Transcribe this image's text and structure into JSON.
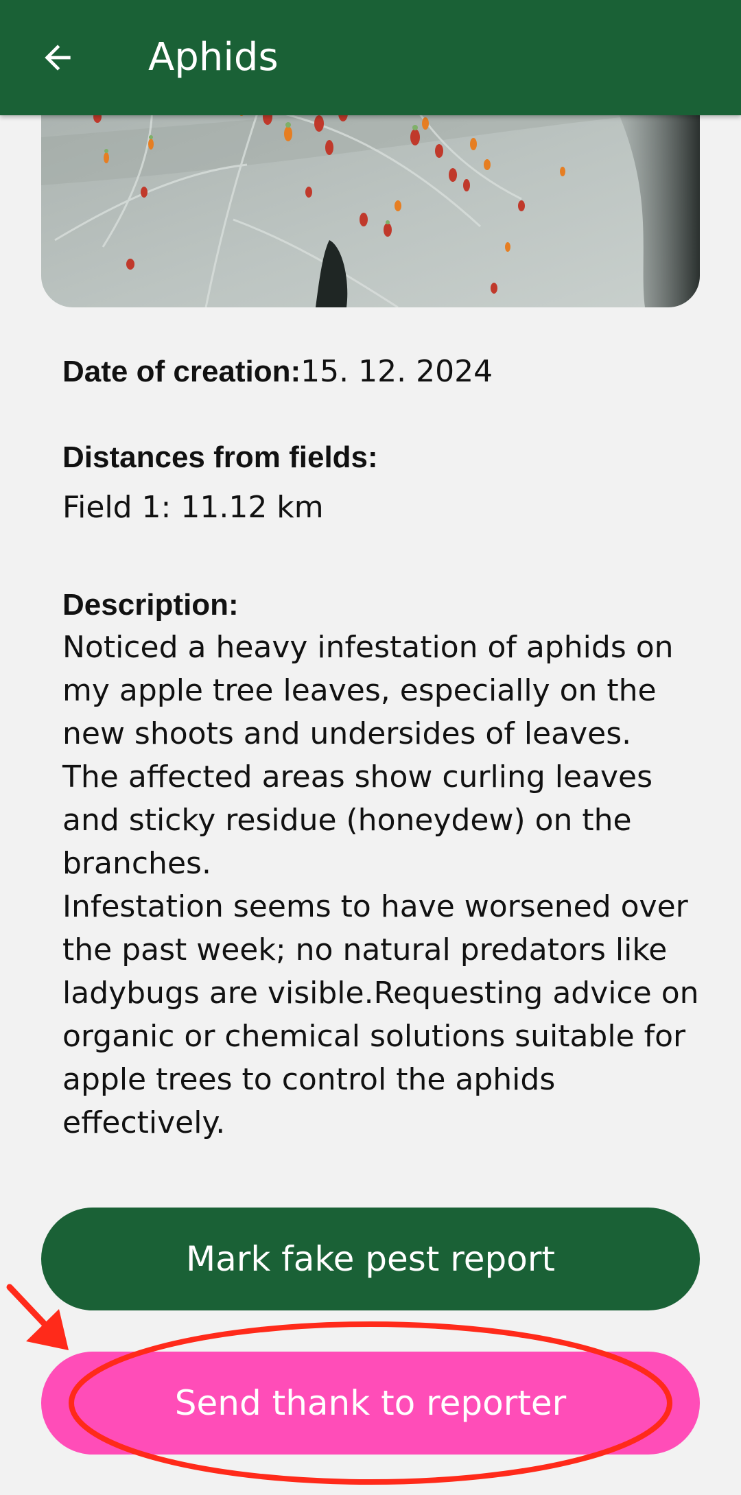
{
  "appbar": {
    "title": "Aphids",
    "back_icon": "arrow-back-icon",
    "background": "#1a6136"
  },
  "photo": {
    "subject": "aphids on leaf"
  },
  "details": {
    "date_label": "Date of creation:",
    "date_value": "15. 12. 2024",
    "distances_label": "Distances from fields:",
    "field_line": "Field 1: 11.12 km",
    "description_label": "Description:",
    "description_text": "Noticed a heavy infestation of aphids on my apple tree leaves, especially on the new shoots and undersides of leaves.\nThe affected areas show curling leaves and sticky residue (honeydew) on the branches.\nInfestation seems to have worsened over the past week; no natural predators like ladybugs are visible.Requesting advice on organic or chemical solutions suitable for apple trees to control the aphids effectively."
  },
  "buttons": {
    "fake_report_label": "Mark fake pest report",
    "fake_report_color": "#1a6136",
    "thank_reporter_label": "Send thank to reporter",
    "thank_reporter_color": "#ff4db8"
  },
  "annotation": {
    "color": "#ff2a1a",
    "target": "Send thank to reporter"
  }
}
